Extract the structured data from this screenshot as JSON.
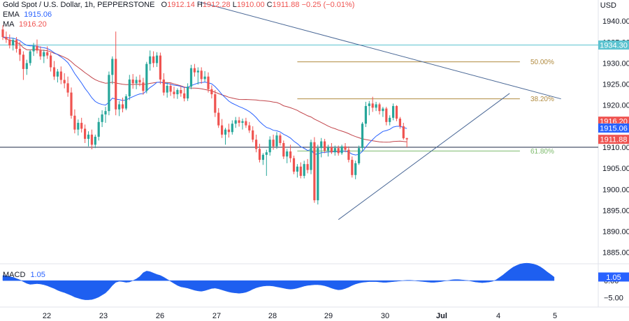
{
  "header": {
    "symbol_title": "Gold Spot / U.S. Dollar, 1h, PEPPERSTONE",
    "open_label": "O",
    "open_value": "1912.14",
    "high_label": "H",
    "high_value": "1912.28",
    "low_label": "L",
    "low_value": "1910.00",
    "close_label": "C",
    "close_value": "1911.88",
    "change": "−0.25 (−0.01%)",
    "ema_label": "EMA",
    "ema_value": "1915.06",
    "ma_label": "MA",
    "ma_value": "1916.20",
    "macd_label": "MACD",
    "macd_value": "1.05",
    "currency": "USD"
  },
  "colors": {
    "up": "#26a69a",
    "down": "#ef5350",
    "ema": "#2962ff",
    "ma": "#c2454b",
    "trend": "#4a6896",
    "horizontal": "#5cc3d0",
    "fib": "#b08a3e",
    "fib618": "#7cba6b",
    "macd_fill": "#1e5ff0",
    "grid_text": "#131722"
  },
  "chart_data": {
    "type": "candlestick",
    "y_axis": {
      "ticks": [
        "1940.00",
        "1935.00",
        "1930.00",
        "1925.00",
        "1920.00",
        "1915.00",
        "1910.00",
        "1905.00",
        "1900.00",
        "1895.00",
        "1890.00",
        "1885.00"
      ],
      "range": [
        1882.3,
        1945
      ]
    },
    "x_axis": {
      "ticks": [
        "22",
        "23",
        "26",
        "27",
        "28",
        "29",
        "30",
        "Jul",
        "4",
        "5"
      ]
    },
    "price_tags": [
      {
        "value": 1934.3,
        "label": "1934.30",
        "color": "#5cc3d0"
      },
      {
        "value": 1916.2,
        "label": "1916.20",
        "color": "#ef5350"
      },
      {
        "value": 1915.06,
        "label": "1915.06",
        "color": "#2962ff"
      },
      {
        "value": 1911.88,
        "label": "1911.88",
        "color": "#ef5350"
      }
    ],
    "levels": [
      {
        "name": "horizontal",
        "value": 1934.3
      },
      {
        "name": "support",
        "value": 1910.0
      }
    ],
    "fib_levels": [
      {
        "label": "50.00%",
        "value": 1930.3
      },
      {
        "label": "38.20%",
        "value": 1921.5
      },
      {
        "label": "61.80%",
        "value": 1909.1
      }
    ],
    "candles": [
      {
        "o": 1938.0,
        "h": 1939.0,
        "l": 1935.5,
        "c": 1936.2
      },
      {
        "o": 1936.2,
        "h": 1937.5,
        "l": 1934.8,
        "c": 1935.6
      },
      {
        "o": 1935.6,
        "h": 1936.8,
        "l": 1933.5,
        "c": 1934.2
      },
      {
        "o": 1934.2,
        "h": 1936.0,
        "l": 1933.0,
        "c": 1935.5
      },
      {
        "o": 1935.5,
        "h": 1936.2,
        "l": 1932.5,
        "c": 1933.4
      },
      {
        "o": 1933.4,
        "h": 1935.0,
        "l": 1930.5,
        "c": 1932.0
      },
      {
        "o": 1932.0,
        "h": 1932.8,
        "l": 1926.0,
        "c": 1928.6
      },
      {
        "o": 1928.6,
        "h": 1930.8,
        "l": 1927.2,
        "c": 1930.0
      },
      {
        "o": 1930.0,
        "h": 1933.2,
        "l": 1929.4,
        "c": 1932.8
      },
      {
        "o": 1932.8,
        "h": 1934.8,
        "l": 1931.7,
        "c": 1934.1
      },
      {
        "o": 1934.1,
        "h": 1935.6,
        "l": 1932.3,
        "c": 1933.0
      },
      {
        "o": 1933.0,
        "h": 1934.0,
        "l": 1930.8,
        "c": 1931.6
      },
      {
        "o": 1931.6,
        "h": 1933.2,
        "l": 1930.0,
        "c": 1932.6
      },
      {
        "o": 1932.6,
        "h": 1934.0,
        "l": 1931.0,
        "c": 1931.8
      },
      {
        "o": 1931.8,
        "h": 1932.5,
        "l": 1928.0,
        "c": 1929.0
      },
      {
        "o": 1929.0,
        "h": 1930.5,
        "l": 1926.0,
        "c": 1926.8
      },
      {
        "o": 1926.8,
        "h": 1928.6,
        "l": 1925.4,
        "c": 1928.0
      },
      {
        "o": 1928.0,
        "h": 1929.2,
        "l": 1925.0,
        "c": 1926.0
      },
      {
        "o": 1926.0,
        "h": 1927.6,
        "l": 1924.0,
        "c": 1925.2
      },
      {
        "o": 1925.2,
        "h": 1926.8,
        "l": 1922.0,
        "c": 1923.0
      },
      {
        "o": 1923.0,
        "h": 1924.2,
        "l": 1916.8,
        "c": 1917.5
      },
      {
        "o": 1917.5,
        "h": 1919.0,
        "l": 1913.3,
        "c": 1914.2
      },
      {
        "o": 1914.2,
        "h": 1916.6,
        "l": 1912.8,
        "c": 1915.8
      },
      {
        "o": 1915.8,
        "h": 1917.0,
        "l": 1913.5,
        "c": 1914.4
      },
      {
        "o": 1914.4,
        "h": 1915.4,
        "l": 1911.0,
        "c": 1912.0
      },
      {
        "o": 1912.0,
        "h": 1913.8,
        "l": 1910.2,
        "c": 1913.0
      },
      {
        "o": 1913.0,
        "h": 1914.2,
        "l": 1909.5,
        "c": 1910.6
      },
      {
        "o": 1910.6,
        "h": 1913.0,
        "l": 1909.8,
        "c": 1912.5
      },
      {
        "o": 1912.5,
        "h": 1917.0,
        "l": 1911.6,
        "c": 1916.0
      },
      {
        "o": 1916.0,
        "h": 1918.8,
        "l": 1914.8,
        "c": 1917.8
      },
      {
        "o": 1917.8,
        "h": 1919.6,
        "l": 1915.8,
        "c": 1918.6
      },
      {
        "o": 1918.6,
        "h": 1928.0,
        "l": 1917.6,
        "c": 1927.2
      },
      {
        "o": 1927.2,
        "h": 1931.6,
        "l": 1925.0,
        "c": 1931.0
      },
      {
        "o": 1931.0,
        "h": 1937.5,
        "l": 1917.6,
        "c": 1919.0
      },
      {
        "o": 1919.0,
        "h": 1921.0,
        "l": 1917.4,
        "c": 1920.2
      },
      {
        "o": 1920.2,
        "h": 1921.8,
        "l": 1918.3,
        "c": 1919.2
      },
      {
        "o": 1919.2,
        "h": 1922.6,
        "l": 1918.8,
        "c": 1922.1
      },
      {
        "o": 1922.1,
        "h": 1927.2,
        "l": 1921.2,
        "c": 1926.1
      },
      {
        "o": 1926.1,
        "h": 1927.4,
        "l": 1923.9,
        "c": 1925.2
      },
      {
        "o": 1925.2,
        "h": 1926.8,
        "l": 1923.8,
        "c": 1926.0
      },
      {
        "o": 1926.0,
        "h": 1927.2,
        "l": 1924.5,
        "c": 1925.4
      },
      {
        "o": 1925.4,
        "h": 1926.5,
        "l": 1922.5,
        "c": 1923.4
      },
      {
        "o": 1923.4,
        "h": 1930.3,
        "l": 1922.8,
        "c": 1929.8
      },
      {
        "o": 1929.8,
        "h": 1933.0,
        "l": 1928.2,
        "c": 1931.6
      },
      {
        "o": 1931.6,
        "h": 1932.8,
        "l": 1929.0,
        "c": 1930.0
      },
      {
        "o": 1930.0,
        "h": 1932.6,
        "l": 1929.1,
        "c": 1931.8
      },
      {
        "o": 1931.8,
        "h": 1932.5,
        "l": 1925.0,
        "c": 1926.1
      },
      {
        "o": 1926.1,
        "h": 1927.6,
        "l": 1922.3,
        "c": 1923.0
      },
      {
        "o": 1923.0,
        "h": 1925.4,
        "l": 1921.8,
        "c": 1924.6
      },
      {
        "o": 1924.6,
        "h": 1925.2,
        "l": 1922.2,
        "c": 1923.2
      },
      {
        "o": 1923.2,
        "h": 1924.4,
        "l": 1921.6,
        "c": 1922.6
      },
      {
        "o": 1922.6,
        "h": 1924.0,
        "l": 1921.5,
        "c": 1923.6
      },
      {
        "o": 1923.6,
        "h": 1924.5,
        "l": 1922.0,
        "c": 1922.8
      },
      {
        "o": 1922.8,
        "h": 1924.4,
        "l": 1920.9,
        "c": 1921.6
      },
      {
        "o": 1921.6,
        "h": 1925.2,
        "l": 1921.0,
        "c": 1924.4
      },
      {
        "o": 1924.4,
        "h": 1929.6,
        "l": 1923.8,
        "c": 1928.8
      },
      {
        "o": 1928.8,
        "h": 1929.8,
        "l": 1926.8,
        "c": 1927.8
      },
      {
        "o": 1927.8,
        "h": 1929.0,
        "l": 1924.9,
        "c": 1928.2
      },
      {
        "o": 1928.2,
        "h": 1929.0,
        "l": 1925.1,
        "c": 1926.2
      },
      {
        "o": 1926.2,
        "h": 1928.1,
        "l": 1925.6,
        "c": 1926.8
      },
      {
        "o": 1926.8,
        "h": 1927.8,
        "l": 1923.0,
        "c": 1923.8
      },
      {
        "o": 1923.8,
        "h": 1924.7,
        "l": 1921.6,
        "c": 1922.6
      },
      {
        "o": 1922.6,
        "h": 1923.6,
        "l": 1917.2,
        "c": 1918.2
      },
      {
        "o": 1918.2,
        "h": 1919.3,
        "l": 1914.6,
        "c": 1915.2
      },
      {
        "o": 1915.2,
        "h": 1916.7,
        "l": 1912.2,
        "c": 1913.0
      },
      {
        "o": 1913.0,
        "h": 1914.6,
        "l": 1910.6,
        "c": 1914.2
      },
      {
        "o": 1914.2,
        "h": 1915.6,
        "l": 1912.3,
        "c": 1913.6
      },
      {
        "o": 1913.6,
        "h": 1916.4,
        "l": 1913.0,
        "c": 1915.6
      },
      {
        "o": 1915.6,
        "h": 1917.2,
        "l": 1914.6,
        "c": 1916.4
      },
      {
        "o": 1916.4,
        "h": 1917.2,
        "l": 1914.9,
        "c": 1915.8
      },
      {
        "o": 1915.8,
        "h": 1916.8,
        "l": 1914.2,
        "c": 1916.2
      },
      {
        "o": 1916.2,
        "h": 1917.0,
        "l": 1914.6,
        "c": 1915.2
      },
      {
        "o": 1915.2,
        "h": 1916.0,
        "l": 1913.4,
        "c": 1914.0
      },
      {
        "o": 1914.0,
        "h": 1915.0,
        "l": 1911.2,
        "c": 1911.8
      },
      {
        "o": 1911.8,
        "h": 1913.0,
        "l": 1908.8,
        "c": 1909.6
      },
      {
        "o": 1909.6,
        "h": 1910.8,
        "l": 1906.4,
        "c": 1907.0
      },
      {
        "o": 1907.0,
        "h": 1908.6,
        "l": 1905.8,
        "c": 1908.2
      },
      {
        "o": 1908.2,
        "h": 1909.4,
        "l": 1903.2,
        "c": 1908.8
      },
      {
        "o": 1908.8,
        "h": 1912.6,
        "l": 1908.0,
        "c": 1911.8
      },
      {
        "o": 1911.8,
        "h": 1913.0,
        "l": 1909.4,
        "c": 1910.2
      },
      {
        "o": 1910.2,
        "h": 1913.6,
        "l": 1909.6,
        "c": 1912.8
      },
      {
        "o": 1912.8,
        "h": 1913.3,
        "l": 1910.4,
        "c": 1911.0
      },
      {
        "o": 1911.0,
        "h": 1911.6,
        "l": 1907.2,
        "c": 1907.8
      },
      {
        "o": 1907.8,
        "h": 1909.6,
        "l": 1906.2,
        "c": 1909.0
      },
      {
        "o": 1909.0,
        "h": 1910.6,
        "l": 1906.4,
        "c": 1907.4
      },
      {
        "o": 1907.4,
        "h": 1908.0,
        "l": 1903.6,
        "c": 1904.2
      },
      {
        "o": 1904.2,
        "h": 1906.0,
        "l": 1902.8,
        "c": 1905.4
      },
      {
        "o": 1905.4,
        "h": 1906.4,
        "l": 1902.6,
        "c": 1903.2
      },
      {
        "o": 1903.2,
        "h": 1906.8,
        "l": 1902.6,
        "c": 1906.0
      },
      {
        "o": 1906.0,
        "h": 1907.2,
        "l": 1903.8,
        "c": 1904.6
      },
      {
        "o": 1904.6,
        "h": 1911.8,
        "l": 1903.6,
        "c": 1911.2
      },
      {
        "o": 1911.2,
        "h": 1912.4,
        "l": 1896.8,
        "c": 1897.4
      },
      {
        "o": 1897.4,
        "h": 1910.6,
        "l": 1896.4,
        "c": 1909.8
      },
      {
        "o": 1909.8,
        "h": 1912.2,
        "l": 1907.6,
        "c": 1911.4
      },
      {
        "o": 1911.4,
        "h": 1912.0,
        "l": 1908.6,
        "c": 1909.2
      },
      {
        "o": 1909.2,
        "h": 1910.6,
        "l": 1907.8,
        "c": 1910.0
      },
      {
        "o": 1910.0,
        "h": 1911.0,
        "l": 1908.4,
        "c": 1908.8
      },
      {
        "o": 1908.8,
        "h": 1910.4,
        "l": 1908.0,
        "c": 1909.8
      },
      {
        "o": 1909.8,
        "h": 1910.4,
        "l": 1908.0,
        "c": 1908.6
      },
      {
        "o": 1908.6,
        "h": 1910.6,
        "l": 1908.2,
        "c": 1910.2
      },
      {
        "o": 1910.2,
        "h": 1911.0,
        "l": 1908.8,
        "c": 1909.4
      },
      {
        "o": 1909.4,
        "h": 1910.2,
        "l": 1906.4,
        "c": 1907.0
      },
      {
        "o": 1907.0,
        "h": 1907.8,
        "l": 1902.8,
        "c": 1903.4
      },
      {
        "o": 1903.4,
        "h": 1906.8,
        "l": 1902.4,
        "c": 1906.2
      },
      {
        "o": 1906.2,
        "h": 1910.4,
        "l": 1905.8,
        "c": 1909.8
      },
      {
        "o": 1909.8,
        "h": 1916.0,
        "l": 1909.2,
        "c": 1915.6
      },
      {
        "o": 1915.6,
        "h": 1920.8,
        "l": 1914.8,
        "c": 1919.8
      },
      {
        "o": 1919.8,
        "h": 1921.0,
        "l": 1917.6,
        "c": 1920.4
      },
      {
        "o": 1920.4,
        "h": 1922.0,
        "l": 1918.4,
        "c": 1919.4
      },
      {
        "o": 1919.4,
        "h": 1920.8,
        "l": 1918.6,
        "c": 1920.2
      },
      {
        "o": 1920.2,
        "h": 1920.6,
        "l": 1917.8,
        "c": 1918.6
      },
      {
        "o": 1918.6,
        "h": 1919.6,
        "l": 1917.2,
        "c": 1919.2
      },
      {
        "o": 1919.2,
        "h": 1919.6,
        "l": 1915.2,
        "c": 1916.0
      },
      {
        "o": 1916.0,
        "h": 1917.6,
        "l": 1915.2,
        "c": 1917.0
      },
      {
        "o": 1917.0,
        "h": 1920.4,
        "l": 1916.4,
        "c": 1919.8
      },
      {
        "o": 1919.8,
        "h": 1920.0,
        "l": 1916.2,
        "c": 1916.8
      },
      {
        "o": 1916.8,
        "h": 1917.2,
        "l": 1914.4,
        "c": 1915.0
      },
      {
        "o": 1915.0,
        "h": 1915.8,
        "l": 1911.8,
        "c": 1912.14
      },
      {
        "o": 1912.14,
        "h": 1912.28,
        "l": 1910.0,
        "c": 1911.88
      }
    ],
    "trendlines": [
      {
        "name": "descending-trendline",
        "p1": {
          "bar": 57,
          "price": 1944.6
        },
        "p2": {
          "bar": 163,
          "price": 1921.5
        }
      },
      {
        "name": "ascending-trendline",
        "p1": {
          "bar": 98,
          "price": 1892.8
        },
        "p2": {
          "bar": 148,
          "price": 1922.8
        }
      }
    ],
    "fib_anchor": {
      "from_bar": 86,
      "to_bar": 151,
      "label_bar": 161
    },
    "macd": {
      "label": "MACD",
      "value": 1.05,
      "ticks": [
        "0.00",
        "−5.00"
      ],
      "values": [
        1.5,
        1.4,
        1.2,
        1.0,
        0.6,
        0.2,
        -0.3,
        -0.8,
        -1.1,
        -1.0,
        -0.9,
        -1.0,
        -1.2,
        -1.5,
        -1.9,
        -2.3,
        -2.8,
        -3.2,
        -3.5,
        -3.9,
        -4.3,
        -4.8,
        -5.1,
        -5.4,
        -5.6,
        -5.6,
        -5.5,
        -5.2,
        -4.8,
        -4.2,
        -3.6,
        -2.6,
        -1.4,
        -0.5,
        -0.2,
        -0.3,
        -0.5,
        -0.4,
        0.0,
        0.5,
        1.2,
        2.3,
        2.8,
        2.6,
        2.2,
        1.8,
        1.5,
        1.0,
        0.4,
        -0.2,
        -0.8,
        -1.4,
        -1.8,
        -2.0,
        -2.2,
        -2.5,
        -2.8,
        -3.0,
        -3.1,
        -2.9,
        -2.6,
        -2.3,
        -2.2,
        -2.4,
        -2.7,
        -3.0,
        -3.3,
        -3.5,
        -3.6,
        -3.7,
        -3.6,
        -3.4,
        -3.0,
        -2.5,
        -2.1,
        -1.8,
        -1.6,
        -1.5,
        -1.5,
        -1.6,
        -1.8,
        -2.0,
        -2.2,
        -2.4,
        -2.5,
        -2.4,
        -2.2,
        -1.9,
        -1.6,
        -1.4,
        -1.3,
        -1.2,
        -1.2,
        -1.3,
        -1.5,
        -1.8,
        -2.2,
        -2.5,
        -2.7,
        -2.6,
        -2.3,
        -1.9,
        -1.4,
        -1.0,
        -0.7,
        -0.5,
        -0.4,
        -0.3,
        -0.3,
        -0.3,
        -0.4,
        -0.5,
        -0.5,
        -0.4,
        -0.3,
        -0.2,
        -0.1,
        0.0,
        0.1,
        0.1,
        0.0,
        -0.1,
        -0.2,
        -0.3,
        -0.4,
        -0.5,
        -0.5,
        -0.4,
        -0.3,
        -0.1,
        0.0,
        0.2,
        0.3,
        0.3,
        0.2,
        0.1,
        0.0,
        -0.2,
        -0.4,
        -0.5,
        -0.6,
        -0.5,
        -0.4,
        -0.2,
        0.2,
        0.9,
        1.6,
        2.4,
        3.2,
        3.9,
        4.4,
        4.8,
        5.0,
        5.1,
        5.0,
        4.8,
        4.5,
        4.0,
        3.3,
        2.5,
        1.8,
        1.05
      ],
      "range": [
        -7.3,
        4.5
      ]
    },
    "title": "Gold Spot / U.S. Dollar, 1h, PEPPERSTONE"
  }
}
